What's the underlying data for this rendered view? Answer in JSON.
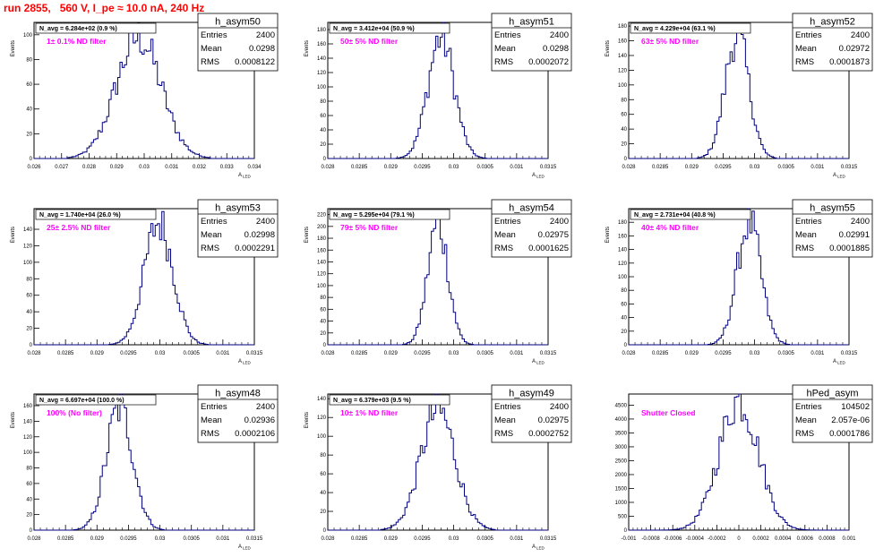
{
  "page_title": "run 2855,   560 V, I_pe ≈ 10.0 nA, 240 Hz",
  "colors": {
    "histogram_line": "#000080",
    "annotation": "#ff00ff",
    "title_red": "#ff0000"
  },
  "chart_data": [
    {
      "type": "histogram",
      "name": "h_asym50",
      "navg_label": "N_avg = 6.284e+02 (0.9 %)",
      "filter_label": "1± 0.1% ND filter",
      "stats": {
        "entries_label": "Entries",
        "entries": "2400",
        "mean_label": "Mean",
        "mean": "0.0298",
        "rms_label": "RMS",
        "rms": "0.0008122"
      },
      "xlabel": "A_LED",
      "ylabel": "Events",
      "xlim": [
        0.026,
        0.034
      ],
      "ylim": [
        0,
        110
      ],
      "xticks": [
        "0.026",
        "0.027",
        "0.028",
        "0.029",
        "0.03",
        "0.031",
        "0.032",
        "0.033",
        "0.034"
      ],
      "yticks": [
        "0",
        "20",
        "40",
        "60",
        "80",
        "100"
      ],
      "dist": {
        "mean": 0.0298,
        "sigma": 0.0008122,
        "peak": 98
      }
    },
    {
      "type": "histogram",
      "name": "h_asym51",
      "navg_label": "N_avg = 3.412e+04 (50.9 %)",
      "filter_label": "50± 5% ND filter",
      "stats": {
        "entries_label": "Entries",
        "entries": "2400",
        "mean_label": "Mean",
        "mean": "0.0298",
        "rms_label": "RMS",
        "rms": "0.0002072"
      },
      "xlabel": "A_LED",
      "ylabel": "Events",
      "xlim": [
        0.028,
        0.0315
      ],
      "ylim": [
        0,
        190
      ],
      "xticks": [
        "0.028",
        "0.0285",
        "0.029",
        "0.0295",
        "0.03",
        "0.0305",
        "0.031",
        "0.0315"
      ],
      "yticks": [
        "0",
        "20",
        "40",
        "60",
        "80",
        "100",
        "120",
        "140",
        "160",
        "180"
      ],
      "dist": {
        "mean": 0.0298,
        "sigma": 0.0002072,
        "peak": 170
      }
    },
    {
      "type": "histogram",
      "name": "h_asym52",
      "navg_label": "N_avg = 4.229e+04 (63.1 %)",
      "filter_label": "63± 5% ND filter",
      "stats": {
        "entries_label": "Entries",
        "entries": "2400",
        "mean_label": "Mean",
        "mean": "0.02972",
        "rms_label": "RMS",
        "rms": "0.0001873"
      },
      "xlabel": "A_LED",
      "ylabel": "Events",
      "xlim": [
        0.028,
        0.0315
      ],
      "ylim": [
        0,
        185
      ],
      "xticks": [
        "0.028",
        "0.0285",
        "0.029",
        "0.0295",
        "0.03",
        "0.0305",
        "0.031",
        "0.0315"
      ],
      "yticks": [
        "0",
        "20",
        "40",
        "60",
        "80",
        "100",
        "120",
        "140",
        "160",
        "180"
      ],
      "dist": {
        "mean": 0.02972,
        "sigma": 0.0001873,
        "peak": 168
      }
    },
    {
      "type": "histogram",
      "name": "h_asym53",
      "navg_label": "N_avg = 1.740e+04 (26.0 %)",
      "filter_label": "25± 2.5% ND filter",
      "stats": {
        "entries_label": "Entries",
        "entries": "2400",
        "mean_label": "Mean",
        "mean": "0.02998",
        "rms_label": "RMS",
        "rms": "0.0002291"
      },
      "xlabel": "A_LED",
      "ylabel": "Events",
      "xlim": [
        0.028,
        0.0315
      ],
      "ylim": [
        0,
        165
      ],
      "xticks": [
        "0.028",
        "0.0285",
        "0.029",
        "0.0295",
        "0.03",
        "0.0305",
        "0.031",
        "0.0315"
      ],
      "yticks": [
        "0",
        "20",
        "40",
        "60",
        "80",
        "100",
        "120",
        "140"
      ],
      "dist": {
        "mean": 0.02998,
        "sigma": 0.0002291,
        "peak": 148
      }
    },
    {
      "type": "histogram",
      "name": "h_asym54",
      "navg_label": "N_avg = 5.295e+04 (79.1 %)",
      "filter_label": "79± 5% ND filter",
      "stats": {
        "entries_label": "Entries",
        "entries": "2400",
        "mean_label": "Mean",
        "mean": "0.02975",
        "rms_label": "RMS",
        "rms": "0.0001625"
      },
      "xlabel": "A_LED",
      "ylabel": "Events",
      "xlim": [
        0.028,
        0.0315
      ],
      "ylim": [
        0,
        230
      ],
      "xticks": [
        "0.028",
        "0.0285",
        "0.029",
        "0.0295",
        "0.03",
        "0.0305",
        "0.031",
        "0.0315"
      ],
      "yticks": [
        "0",
        "20",
        "40",
        "60",
        "80",
        "100",
        "120",
        "140",
        "160",
        "180",
        "200",
        "220"
      ],
      "dist": {
        "mean": 0.02975,
        "sigma": 0.0001625,
        "peak": 205
      }
    },
    {
      "type": "histogram",
      "name": "h_asym55",
      "navg_label": "N_avg = 2.731e+04 (40.8 %)",
      "filter_label": "40± 4% ND filter",
      "stats": {
        "entries_label": "Entries",
        "entries": "2400",
        "mean_label": "Mean",
        "mean": "0.02991",
        "rms_label": "RMS",
        "rms": "0.0001885"
      },
      "xlabel": "A_LED",
      "ylabel": "Events",
      "xlim": [
        0.028,
        0.0315
      ],
      "ylim": [
        0,
        200
      ],
      "xticks": [
        "0.028",
        "0.0285",
        "0.029",
        "0.0295",
        "0.03",
        "0.0305",
        "0.031",
        "0.0315"
      ],
      "yticks": [
        "0",
        "20",
        "40",
        "60",
        "80",
        "100",
        "120",
        "140",
        "160",
        "180"
      ],
      "dist": {
        "mean": 0.02991,
        "sigma": 0.0001885,
        "peak": 180
      }
    },
    {
      "type": "histogram",
      "name": "h_asym48",
      "navg_label": "N_avg = 6.697e+04 (100.0 %)",
      "filter_label": "100% (No filter)",
      "stats": {
        "entries_label": "Entries",
        "entries": "2400",
        "mean_label": "Mean",
        "mean": "0.02936",
        "rms_label": "RMS",
        "rms": "0.0002106"
      },
      "xlabel": "A_LED",
      "ylabel": "Events",
      "xlim": [
        0.028,
        0.0315
      ],
      "ylim": [
        0,
        175
      ],
      "xticks": [
        "0.028",
        "0.0285",
        "0.029",
        "0.0295",
        "0.03",
        "0.0305",
        "0.031",
        "0.0315"
      ],
      "yticks": [
        "0",
        "20",
        "40",
        "60",
        "80",
        "100",
        "120",
        "140",
        "160"
      ],
      "dist": {
        "mean": 0.02936,
        "sigma": 0.0002106,
        "peak": 158
      }
    },
    {
      "type": "histogram",
      "name": "h_asym49",
      "navg_label": "N_avg = 6.379e+03 (9.5 %)",
      "filter_label": "10± 1% ND filter",
      "stats": {
        "entries_label": "Entries",
        "entries": "2400",
        "mean_label": "Mean",
        "mean": "0.02975",
        "rms_label": "RMS",
        "rms": "0.0002752"
      },
      "xlabel": "A_LED",
      "ylabel": "Events",
      "xlim": [
        0.028,
        0.0315
      ],
      "ylim": [
        0,
        145
      ],
      "xticks": [
        "0.028",
        "0.0285",
        "0.029",
        "0.0295",
        "0.03",
        "0.0305",
        "0.031",
        "0.0315"
      ],
      "yticks": [
        "0",
        "20",
        "40",
        "60",
        "80",
        "100",
        "120",
        "140"
      ],
      "dist": {
        "mean": 0.02975,
        "sigma": 0.0002752,
        "peak": 128
      }
    },
    {
      "type": "histogram",
      "name": "hPed_asym",
      "navg_label": "",
      "filter_label": "Shutter Closed",
      "stats": {
        "entries_label": "Entries",
        "entries": "104502",
        "mean_label": "Mean",
        "mean": "2.057e-06",
        "rms_label": "RMS",
        "rms": "0.0001786"
      },
      "xlabel": "",
      "ylabel": "",
      "xlim": [
        -0.001,
        0.001
      ],
      "ylim": [
        0,
        4900
      ],
      "xticks": [
        "-0.001",
        "-0.0008",
        "-0.0006",
        "-0.0004",
        "-0.0002",
        "0",
        "0.0002",
        "0.0004",
        "0.0006",
        "0.0008",
        "0.001"
      ],
      "yticks": [
        "0",
        "500",
        "1000",
        "1500",
        "2000",
        "2500",
        "3000",
        "3500",
        "4000",
        "4500"
      ],
      "dist": {
        "mean": 0.0,
        "sigma": 0.0001786,
        "peak": 4700
      }
    }
  ]
}
